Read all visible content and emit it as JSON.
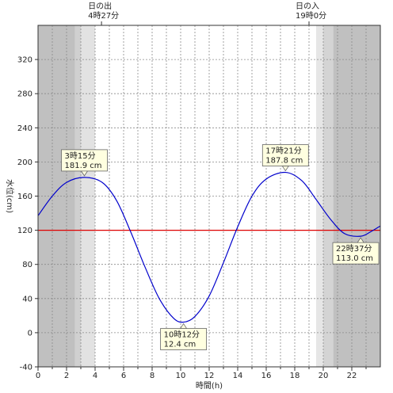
{
  "chart_data": {
    "type": "line",
    "title": "",
    "xlabel": "時間(h)",
    "ylabel": "水位(cm)",
    "xlim": [
      0,
      24
    ],
    "ylim": [
      -40,
      360
    ],
    "x_ticks": [
      0,
      2,
      4,
      6,
      8,
      10,
      12,
      14,
      16,
      18,
      20,
      22
    ],
    "y_ticks": [
      -40,
      0,
      40,
      80,
      120,
      160,
      200,
      240,
      280,
      320
    ],
    "grid": true,
    "series": [
      {
        "color": "#0000cc",
        "points": [
          [
            0,
            137
          ],
          [
            1,
            160
          ],
          [
            2,
            176
          ],
          [
            3.25,
            181.9
          ],
          [
            4.5,
            176
          ],
          [
            5.5,
            155
          ],
          [
            6.5,
            118
          ],
          [
            7.5,
            77
          ],
          [
            8.5,
            40
          ],
          [
            9.5,
            17
          ],
          [
            10.2,
            12.4
          ],
          [
            11,
            19
          ],
          [
            12,
            43
          ],
          [
            13,
            82
          ],
          [
            14,
            124
          ],
          [
            15,
            160
          ],
          [
            16,
            180
          ],
          [
            17.35,
            187.8
          ],
          [
            18.5,
            178
          ],
          [
            19.5,
            156
          ],
          [
            20.5,
            133
          ],
          [
            21.5,
            116
          ],
          [
            22.62,
            113.0
          ],
          [
            23.3,
            118
          ],
          [
            24,
            125
          ]
        ]
      }
    ],
    "reference_line": {
      "y": 120,
      "color": "#dd0000"
    },
    "shading": [
      {
        "from": 0,
        "to": 2.6,
        "color": "#c0c0c0"
      },
      {
        "from": 2.6,
        "to": 3.0,
        "color": "#d0d0d0"
      },
      {
        "from": 3.0,
        "to": 4.0,
        "color": "#e2e2e2"
      },
      {
        "from": 19.5,
        "to": 20.0,
        "color": "#e6e6e6"
      },
      {
        "from": 20.0,
        "to": 20.7,
        "color": "#d4d4d4"
      },
      {
        "from": 20.7,
        "to": 24,
        "color": "#c0c0c0"
      }
    ],
    "sun_events": [
      {
        "x": 4.45,
        "label": "日の出",
        "time": "4時27分"
      },
      {
        "x": 19.0,
        "label": "日の入",
        "time": "19時0分"
      }
    ],
    "annotations": [
      {
        "x": 3.25,
        "y": 181.9,
        "time": "3時15分",
        "value": "181.9 cm",
        "placement": "above"
      },
      {
        "x": 17.35,
        "y": 187.8,
        "time": "17時21分",
        "value": "187.8 cm",
        "placement": "above"
      },
      {
        "x": 10.2,
        "y": 12.4,
        "time": "10時12分",
        "value": "12.4 cm",
        "placement": "below"
      },
      {
        "x": 22.62,
        "y": 113.0,
        "time": "22時37分",
        "value": "113.0 cm",
        "placement": "below"
      }
    ]
  }
}
